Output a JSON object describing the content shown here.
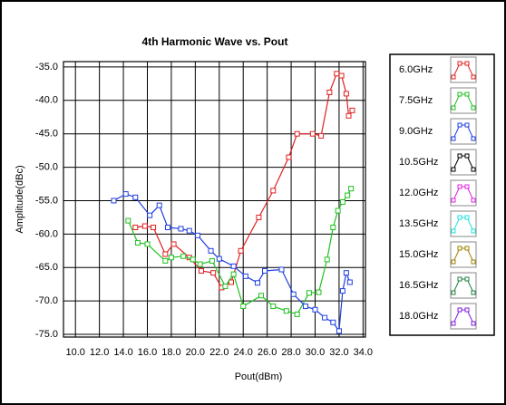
{
  "chart_data": {
    "type": "line",
    "title": "4th Harmonic Wave vs. Pout",
    "x_label": "Pout(dBm)",
    "y_label": "Amplitude(dBc)",
    "xlim": [
      9,
      34.2
    ],
    "ylim": [
      -75.4,
      -34.2
    ],
    "xticks": [
      {
        "value": 10,
        "label": "10.0"
      },
      {
        "value": 12,
        "label": "12.0"
      },
      {
        "value": 14,
        "label": "14.0"
      },
      {
        "value": 16,
        "label": "16.0"
      },
      {
        "value": 18,
        "label": "18.0"
      },
      {
        "value": 20,
        "label": "20.0"
      },
      {
        "value": 22,
        "label": "22.0"
      },
      {
        "value": 24,
        "label": "24.0"
      },
      {
        "value": 26,
        "label": "26.0"
      },
      {
        "value": 28,
        "label": "28.0"
      },
      {
        "value": 30,
        "label": "30.0"
      },
      {
        "value": 32,
        "label": "32.0"
      },
      {
        "value": 34,
        "label": "34.0"
      }
    ],
    "yticks": [
      {
        "value": -35,
        "label": "-35.0"
      },
      {
        "value": -40,
        "label": "-40.0"
      },
      {
        "value": -45,
        "label": "-45.0"
      },
      {
        "value": -50,
        "label": "-50.0"
      },
      {
        "value": -55,
        "label": "-55.0"
      },
      {
        "value": -60,
        "label": "-60.0"
      },
      {
        "value": -65,
        "label": "-65.0"
      },
      {
        "value": -70,
        "label": "-70.0"
      },
      {
        "value": -75,
        "label": "-75.0"
      }
    ],
    "grid": true,
    "legend": "right",
    "series": [
      {
        "name": "6.0GHz",
        "color": "#e02020",
        "x": [
          15.0,
          15.8,
          16.5,
          17.5,
          18.2,
          19.5,
          20.5,
          21.5,
          22.2,
          23.0,
          23.8,
          25.3,
          26.5,
          27.8,
          28.5,
          29.8,
          30.5,
          31.2,
          31.8,
          32.2,
          32.6,
          32.8,
          33.1
        ],
        "values": [
          -59,
          -58.8,
          -59,
          -63,
          -61.5,
          -63.5,
          -65.5,
          -65.8,
          -68,
          -67.2,
          -62.5,
          -57.5,
          -53.5,
          -48.5,
          -45,
          -45,
          -45.3,
          -38.8,
          -36,
          -36.3,
          -39,
          -42.3,
          -41.5
        ]
      },
      {
        "name": "7.5GHz",
        "color": "#20c020",
        "x": [
          14.4,
          15.2,
          16.0,
          17.5,
          18.0,
          19.0,
          19.8,
          20.4,
          21.4,
          22.5,
          23.2,
          24.0,
          25.5,
          26.5,
          27.6,
          28.5,
          29.5,
          30.3,
          31.0,
          31.5,
          31.9,
          32.3,
          32.7,
          33.0
        ],
        "values": [
          -58,
          -61.3,
          -61.5,
          -64,
          -63.5,
          -63.3,
          -63.8,
          -64.5,
          -64,
          -67.8,
          -66,
          -70.8,
          -69.2,
          -70.8,
          -71.5,
          -72,
          -68.8,
          -68.7,
          -63.8,
          -59,
          -56.5,
          -55.2,
          -54.2,
          -53.2
        ]
      },
      {
        "name": "9.0GHz",
        "color": "#2040e0",
        "x": [
          13.2,
          14.2,
          15.0,
          16.2,
          17.0,
          17.7,
          18.8,
          19.5,
          20.2,
          21.3,
          22.0,
          23.2,
          24.2,
          25.2,
          25.8,
          27.2,
          28.2,
          29.2,
          30.0,
          30.8,
          31.5,
          32.0,
          32.3,
          32.6,
          32.9
        ],
        "values": [
          -55,
          -54,
          -54.5,
          -57.2,
          -55.7,
          -59,
          -59.2,
          -59.5,
          -60.2,
          -62.5,
          -63.7,
          -64.8,
          -66.3,
          -67.3,
          -65.5,
          -65.3,
          -69,
          -70.8,
          -71.3,
          -72.5,
          -73.2,
          -74.5,
          -68.5,
          -65.8,
          -67.2
        ]
      },
      {
        "name": "10.5GHz",
        "color": "#000000",
        "x": [],
        "values": []
      },
      {
        "name": "12.0GHz",
        "color": "#e020e0",
        "x": [],
        "values": []
      },
      {
        "name": "13.5GHz",
        "color": "#20e0e0",
        "x": [],
        "values": []
      },
      {
        "name": "15.0GHz",
        "color": "#a08000",
        "x": [],
        "values": []
      },
      {
        "name": "16.5GHz",
        "color": "#208040",
        "x": [],
        "values": []
      },
      {
        "name": "18.0GHz",
        "color": "#8020e0",
        "x": [],
        "values": []
      }
    ]
  }
}
